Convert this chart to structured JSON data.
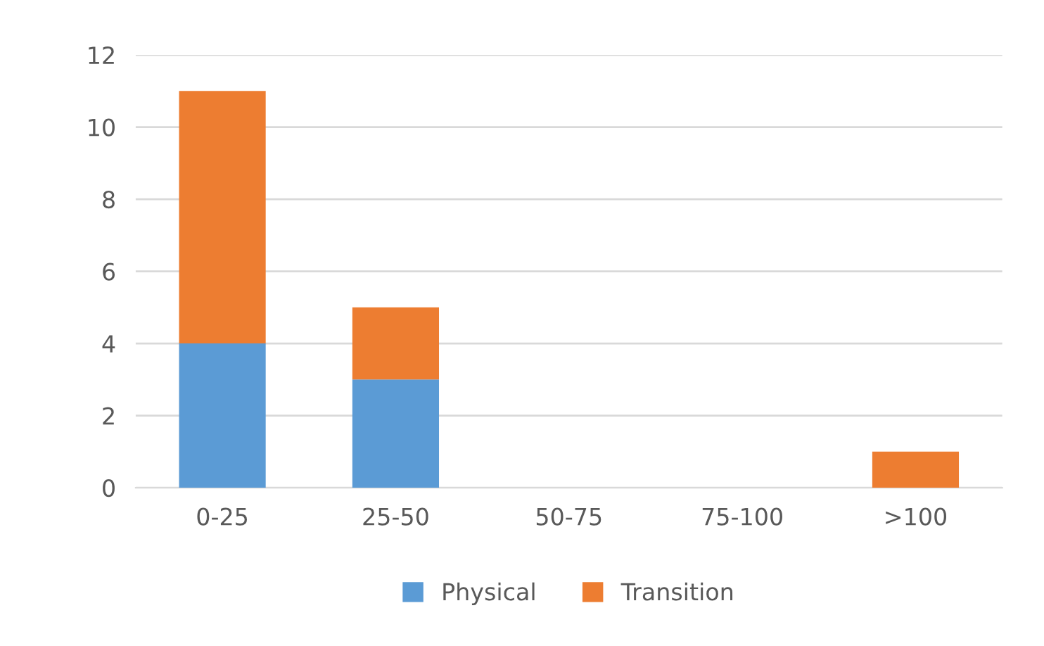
{
  "chart_data": {
    "type": "bar",
    "stacked": true,
    "categories": [
      "0-25",
      "25-50",
      "50-75",
      "75-100",
      ">100"
    ],
    "series": [
      {
        "name": "Physical",
        "color": "#5b9bd5",
        "values": [
          4,
          3,
          0,
          0,
          0
        ]
      },
      {
        "name": "Transition",
        "color": "#ed7d31",
        "values": [
          7,
          2,
          0,
          0,
          1
        ]
      }
    ],
    "ylim": [
      0,
      12
    ],
    "yticks": [
      0,
      2,
      4,
      6,
      8,
      10,
      12
    ],
    "grid": "y",
    "legend": "bottom"
  }
}
